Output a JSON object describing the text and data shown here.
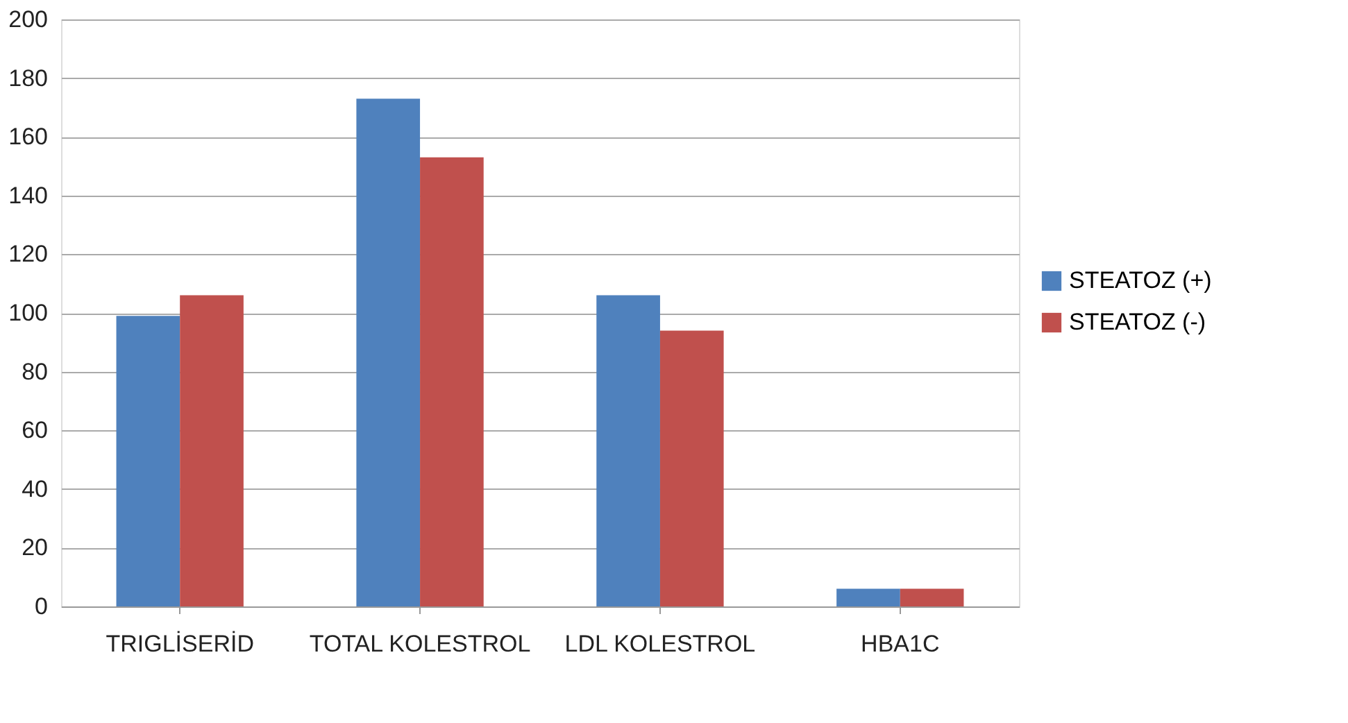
{
  "chart_data": {
    "type": "bar",
    "categories": [
      "TRIGLİSERİD",
      "TOTAL KOLESTROL",
      "LDL KOLESTROL",
      "HBA1C"
    ],
    "series": [
      {
        "name": "STEATOZ (+)",
        "color": "#4f81bd",
        "values": [
          99,
          173,
          106,
          6
        ]
      },
      {
        "name": "STEATOZ (-)",
        "color": "#c0504d",
        "values": [
          106,
          153,
          94,
          6
        ]
      }
    ],
    "ylim": [
      0,
      200
    ],
    "yticks": [
      0,
      20,
      40,
      60,
      80,
      100,
      120,
      140,
      160,
      180,
      200
    ],
    "grid": "y",
    "legend": "right"
  }
}
